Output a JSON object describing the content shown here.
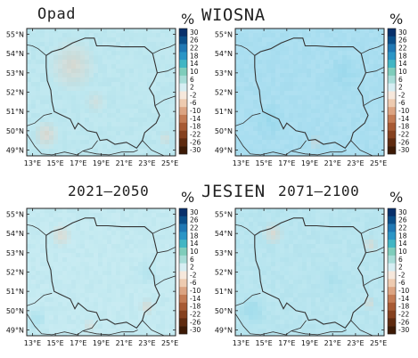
{
  "headers": {
    "top_left": "Opad",
    "top_right": "WIOSNA",
    "bottom_left": "2021–2050",
    "bottom_center": "JESIEN",
    "bottom_right": "2071–2100"
  },
  "unit": "%",
  "axes": {
    "lon_labels": [
      "13°E",
      "15°E",
      "17°E",
      "19°E",
      "21°E",
      "23°E",
      "25°E"
    ],
    "lat_labels": [
      "55°N",
      "54°N",
      "53°N",
      "52°N",
      "51°N",
      "50°N",
      "49°N"
    ]
  },
  "colorbar": {
    "labels": [
      "30",
      "26",
      "22",
      "18",
      "14",
      "10",
      "6",
      "2",
      "-2",
      "-6",
      "-10",
      "-14",
      "-18",
      "-22",
      "-26",
      "-30"
    ],
    "colors": [
      "#08306b",
      "#0a4f8a",
      "#1f78b4",
      "#2b95c6",
      "#41b6c4",
      "#7fcdbb",
      "#a8ddd8",
      "#d6eef3",
      "#f6e8dc",
      "#eecbb0",
      "#dca482",
      "#c47c55",
      "#a75a34",
      "#85411f",
      "#5f2b10",
      "#3d1a06"
    ]
  },
  "panels": [
    {
      "name": "spring-2021-2050",
      "base": "#bde7ef",
      "wet": [],
      "dry": [
        {
          "x": 16.5,
          "y": 53.4,
          "r": 2.2,
          "s": 0.55
        },
        {
          "x": 14.2,
          "y": 49.8,
          "r": 1.2,
          "s": 0.6
        },
        {
          "x": 18.5,
          "y": 51.5,
          "r": 1.0,
          "s": 0.3
        },
        {
          "x": 24.6,
          "y": 49.6,
          "r": 0.6,
          "s": 0.4
        }
      ]
    },
    {
      "name": "spring-2071-2100",
      "base": "#a9def0",
      "wet": [
        {
          "x": 15.5,
          "y": 50.5,
          "r": 1.5,
          "s": 0.4
        },
        {
          "x": 22,
          "y": 53,
          "r": 1.6,
          "s": 0.3
        }
      ],
      "dry": [
        {
          "x": 19.5,
          "y": 49.4,
          "r": 0.6,
          "s": 0.4
        }
      ]
    },
    {
      "name": "autumn-2021-2050",
      "base": "#c4eaf1",
      "wet": [
        {
          "x": 13.4,
          "y": 49.6,
          "r": 1.0,
          "s": 0.35
        },
        {
          "x": 23,
          "y": 52,
          "r": 1.2,
          "s": 0.2
        }
      ],
      "dry": [
        {
          "x": 15.5,
          "y": 53.9,
          "r": 1.0,
          "s": 0.55
        },
        {
          "x": 23,
          "y": 50.2,
          "r": 0.7,
          "s": 0.55
        },
        {
          "x": 18,
          "y": 49.2,
          "r": 0.6,
          "s": 0.4
        }
      ]
    },
    {
      "name": "autumn-2071-2100",
      "base": "#b8e5ef",
      "wet": [
        {
          "x": 14.0,
          "y": 50.0,
          "r": 1.4,
          "s": 0.45
        },
        {
          "x": 21,
          "y": 51.5,
          "r": 1.6,
          "s": 0.2
        }
      ],
      "dry": [
        {
          "x": 15.8,
          "y": 54.0,
          "r": 1.0,
          "s": 0.55
        },
        {
          "x": 24.3,
          "y": 53.4,
          "r": 0.7,
          "s": 0.5
        },
        {
          "x": 24.2,
          "y": 50.4,
          "r": 0.6,
          "s": 0.5
        }
      ]
    }
  ]
}
